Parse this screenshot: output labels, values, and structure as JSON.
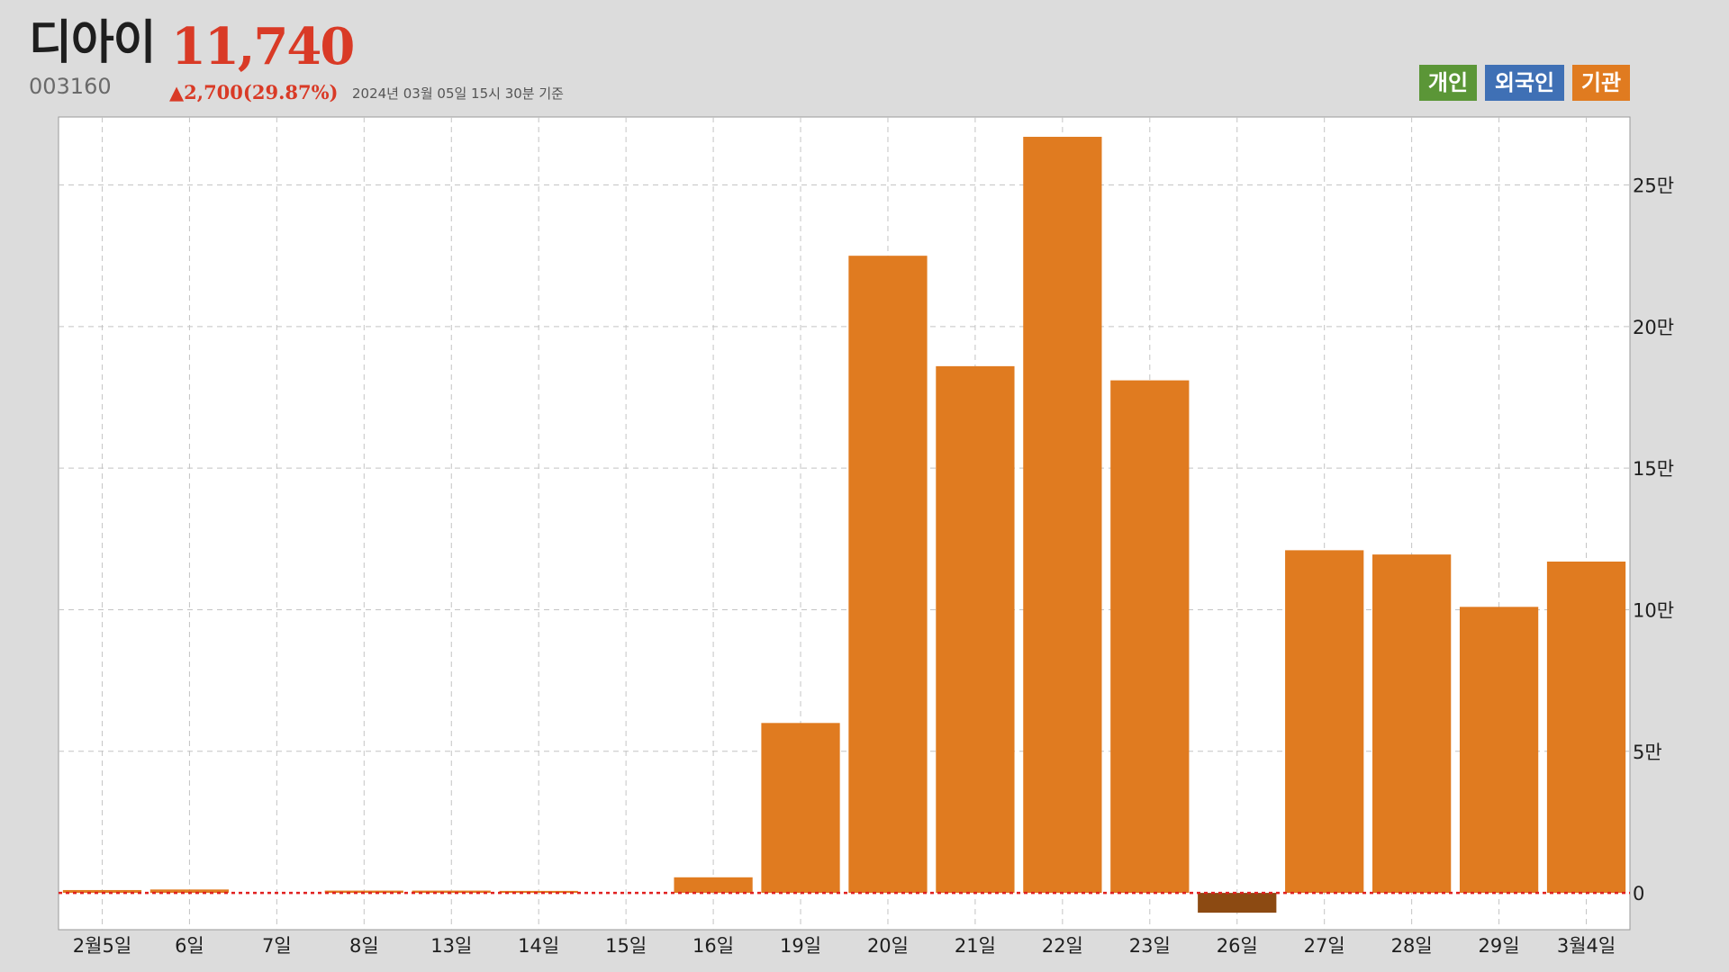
{
  "stock": {
    "name": "디아이",
    "code": "003160",
    "price": "11,740",
    "change": "▲2,700(29.87%)",
    "as_of": "2024년 03월 05일 15시 30분 기준"
  },
  "legend": [
    {
      "label": "개인",
      "color": "#5b9637"
    },
    {
      "label": "외국인",
      "color": "#3f70b5"
    },
    {
      "label": "기관",
      "color": "#e07b20"
    }
  ],
  "colors": {
    "positive": "#e07b20",
    "negative": "#8c4a12",
    "zero_line": "#e02020",
    "grid": "#c4c4c4",
    "plot_bg": "#ffffff"
  },
  "chart_data": {
    "type": "bar",
    "series": [
      {
        "name": "기관",
        "values": [
          1000,
          1200,
          0,
          800,
          800,
          700,
          0,
          5500,
          60000,
          225000,
          186000,
          267000,
          181000,
          -7000,
          121000,
          119500,
          101000,
          117000
        ]
      }
    ],
    "categories": [
      "2월5일",
      "6일",
      "7일",
      "8일",
      "13일",
      "14일",
      "15일",
      "16일",
      "19일",
      "20일",
      "21일",
      "22일",
      "23일",
      "26일",
      "27일",
      "28일",
      "29일",
      "3월4일"
    ],
    "y_ticks": [
      {
        "value": 0,
        "label": "0"
      },
      {
        "value": 50000,
        "label": "5만"
      },
      {
        "value": 100000,
        "label": "10만"
      },
      {
        "value": 150000,
        "label": "15만"
      },
      {
        "value": 200000,
        "label": "20만"
      },
      {
        "value": 250000,
        "label": "25만"
      }
    ],
    "ylim": [
      -13000,
      274000
    ],
    "grid": true,
    "y_axis_position": "right",
    "legend_position": "top-right"
  }
}
